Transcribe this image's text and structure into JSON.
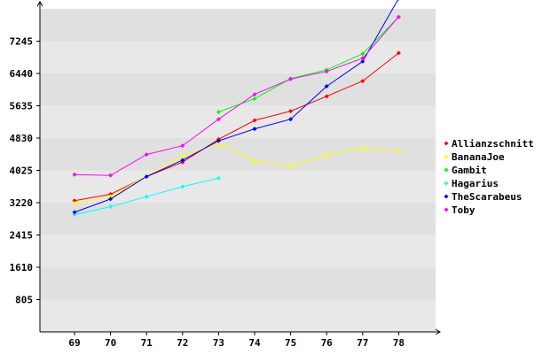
{
  "chart_data": {
    "type": "line",
    "categories": [
      "69",
      "70",
      "71",
      "72",
      "73",
      "74",
      "75",
      "76",
      "77",
      "78"
    ],
    "yticks": [
      805,
      1610,
      2415,
      3220,
      4025,
      4830,
      5635,
      6440,
      7245
    ],
    "ylim": [
      0,
      8050
    ],
    "grid": true,
    "legend_position": "right",
    "series": [
      {
        "name": "Allianzschnitt",
        "color": "#ff0000",
        "values": [
          3270,
          3430,
          3870,
          4230,
          4800,
          5270,
          5500,
          5870,
          6250,
          6950
        ]
      },
      {
        "name": "BananaJoe",
        "color": "#ffff00",
        "values": [
          3200,
          3380,
          3880,
          4380,
          4700,
          4250,
          4130,
          4410,
          4580,
          4500
        ]
      },
      {
        "name": "Gambit",
        "color": "#00ff00",
        "values": [
          null,
          null,
          null,
          null,
          5480,
          5810,
          6310,
          6530,
          6930,
          7850
        ]
      },
      {
        "name": "Hagarius",
        "color": "#00ffff",
        "values": [
          2920,
          3120,
          3370,
          3620,
          3830,
          null,
          null,
          null,
          null,
          null
        ]
      },
      {
        "name": "TheScarabeus",
        "color": "#0000ff",
        "values": [
          2980,
          3310,
          3870,
          4280,
          4760,
          5060,
          5300,
          6120,
          6740,
          8310
        ]
      },
      {
        "name": "Toby",
        "color": "#ff00ff",
        "values": [
          3920,
          3900,
          4420,
          4640,
          5300,
          5920,
          6300,
          6490,
          6820,
          7850
        ]
      }
    ]
  }
}
